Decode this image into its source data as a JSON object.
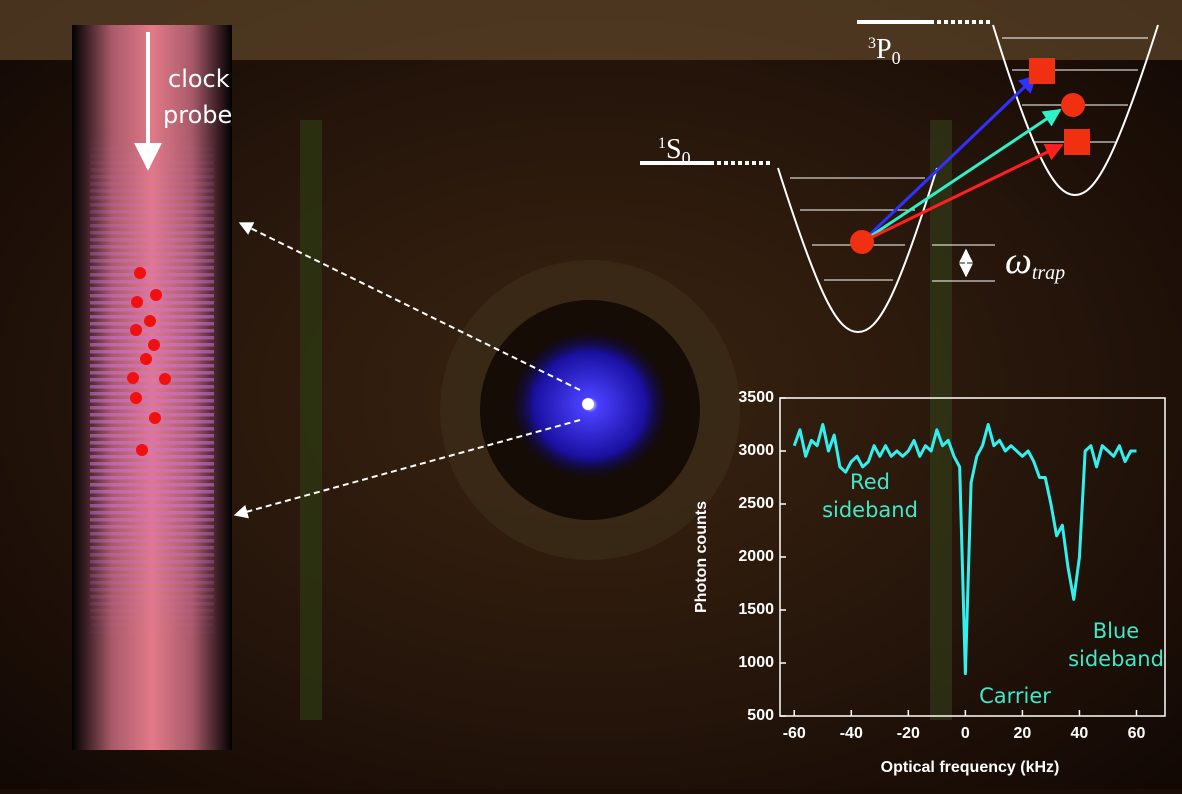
{
  "chart_data": {
    "type": "line",
    "xlabel": "Optical frequency (kHz)",
    "ylabel": "Photon counts",
    "x": [
      -60,
      -58,
      -56,
      -54,
      -52,
      -50,
      -48,
      -46,
      -44,
      -42,
      -40,
      -38,
      -36,
      -34,
      -32,
      -30,
      -28,
      -26,
      -24,
      -22,
      -20,
      -18,
      -16,
      -14,
      -12,
      -10,
      -8,
      -6,
      -4,
      -2,
      0,
      2,
      4,
      6,
      8,
      10,
      12,
      14,
      16,
      18,
      20,
      22,
      24,
      26,
      28,
      30,
      32,
      34,
      36,
      38,
      40,
      42,
      44,
      46,
      48,
      50,
      52,
      54,
      56,
      58,
      60
    ],
    "series": [
      {
        "color": "#33f0f0",
        "values": [
          3050,
          3200,
          2950,
          3100,
          3050,
          3250,
          3000,
          3150,
          2850,
          2800,
          2900,
          2950,
          2850,
          2900,
          3050,
          2950,
          3050,
          2950,
          3000,
          2950,
          3000,
          3100,
          2950,
          3050,
          3000,
          3200,
          3050,
          3100,
          2950,
          2850,
          900,
          2700,
          2950,
          3050,
          3250,
          3050,
          3100,
          3000,
          3050,
          3000,
          2950,
          3000,
          2900,
          2750,
          2750,
          2500,
          2200,
          2300,
          1900,
          1600,
          2000,
          3000,
          3050,
          2850,
          3050,
          3000,
          2950,
          3050,
          2900,
          3000,
          3000
        ]
      }
    ],
    "xlim": [
      -65,
      70
    ],
    "ylim": [
      500,
      3500
    ],
    "xticks": [
      -60,
      -40,
      -20,
      0,
      20,
      40,
      60
    ],
    "yticks": [
      500,
      1000,
      1500,
      2000,
      2500,
      3000,
      3500
    ],
    "annotations": [
      {
        "lines": [
          "Red",
          "sideband"
        ]
      },
      {
        "lines": [
          "Carrier"
        ]
      },
      {
        "lines": [
          "Blue",
          "sideband"
        ]
      }
    ]
  },
  "diagram": {
    "probe_label": [
      "clock",
      "probe"
    ],
    "ground_state": {
      "sup": "1",
      "base": "S",
      "sub": "0"
    },
    "excited_state": {
      "sup": "3",
      "base": "P",
      "sub": "0"
    },
    "trap_label": {
      "base": "ω",
      "sub": "trap"
    }
  }
}
